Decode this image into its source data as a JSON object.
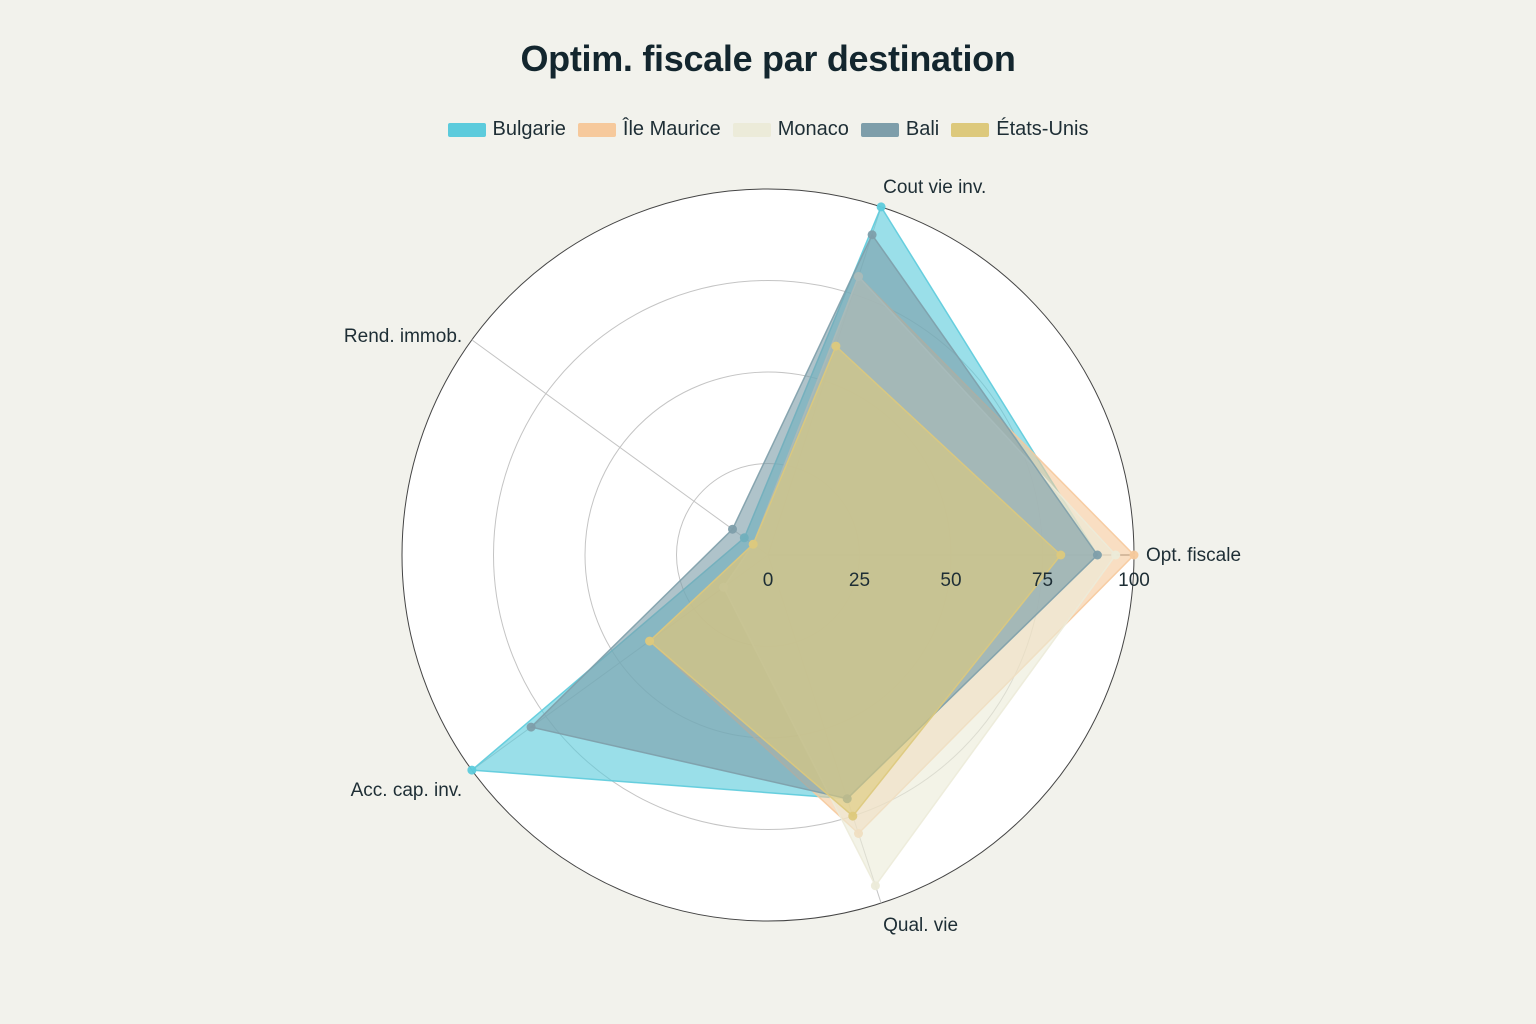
{
  "chart_data": {
    "type": "radar",
    "title": "Optim. fiscale par destination",
    "axes": [
      "Opt. fiscale",
      "Cout vie inv.",
      "Rend. immob.",
      "Acc. cap. inv.",
      "Qual. vie"
    ],
    "radial_range": [
      0,
      100
    ],
    "radial_ticks": [
      "0",
      "25",
      "50",
      "75",
      "100"
    ],
    "grid": true,
    "legend_position": "top",
    "series": [
      {
        "name": "Bulgarie",
        "color": "#5ccbdc",
        "values": [
          90,
          100,
          8,
          100,
          70
        ]
      },
      {
        "name": "Île Maurice",
        "color": "#f6c99c",
        "values": [
          100,
          80,
          5,
          40,
          80
        ]
      },
      {
        "name": "Monaco",
        "color": "#ecebd9",
        "values": [
          95,
          80,
          5,
          15,
          95
        ]
      },
      {
        "name": "Bali",
        "color": "#7e9eaa",
        "values": [
          90,
          92,
          12,
          80,
          70
        ]
      },
      {
        "name": "États-Unis",
        "color": "#ddc97c",
        "values": [
          80,
          60,
          5,
          40,
          75
        ]
      }
    ]
  }
}
